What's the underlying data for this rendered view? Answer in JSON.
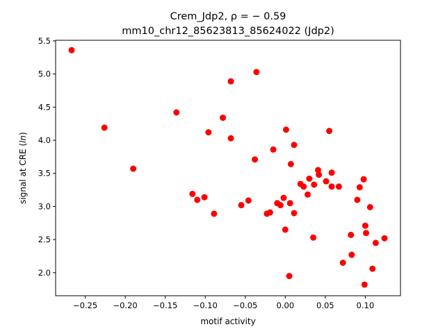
{
  "chart_data": {
    "type": "scatter",
    "title_line1": "Crem_Jdp2, ρ = − 0.59",
    "title_line2": "mm10_chr12_85623813_85624022 (Jdp2)",
    "xlabel": "motif activity",
    "ylabel_prefix": "signal at CRE (",
    "ylabel_italic": "ln",
    "ylabel_suffix": ")",
    "xlim": [
      -0.287,
      0.144
    ],
    "ylim": [
      1.652,
      5.51
    ],
    "xticks": [
      -0.25,
      -0.2,
      -0.15,
      -0.1,
      -0.05,
      0.0,
      0.05,
      0.1
    ],
    "xtick_labels": [
      "−0.25",
      "−0.20",
      "−0.15",
      "−0.10",
      "−0.05",
      "0.00",
      "0.05",
      "0.10"
    ],
    "yticks": [
      2.0,
      2.5,
      3.0,
      3.5,
      4.0,
      4.5,
      5.0,
      5.5
    ],
    "ytick_labels": [
      "2.0",
      "2.5",
      "3.0",
      "3.5",
      "4.0",
      "4.5",
      "5.0",
      "5.5"
    ],
    "grid": false,
    "marker_color": "#ff0000",
    "points": [
      [
        -0.267,
        5.36
      ],
      [
        -0.226,
        4.19
      ],
      [
        -0.19,
        3.57
      ],
      [
        -0.136,
        4.42
      ],
      [
        -0.116,
        3.19
      ],
      [
        -0.11,
        3.1
      ],
      [
        -0.101,
        3.14
      ],
      [
        -0.096,
        4.12
      ],
      [
        -0.089,
        2.89
      ],
      [
        -0.078,
        4.34
      ],
      [
        -0.068,
        4.89
      ],
      [
        -0.068,
        4.03
      ],
      [
        -0.055,
        3.02
      ],
      [
        -0.046,
        3.09
      ],
      [
        -0.038,
        3.71
      ],
      [
        -0.036,
        5.03
      ],
      [
        -0.023,
        2.89
      ],
      [
        -0.019,
        2.91
      ],
      [
        -0.015,
        3.86
      ],
      [
        -0.01,
        3.05
      ],
      [
        -0.006,
        3.02
      ],
      [
        -0.002,
        3.13
      ],
      [
        0.0,
        2.65
      ],
      [
        0.001,
        4.16
      ],
      [
        0.005,
        1.95
      ],
      [
        0.006,
        3.05
      ],
      [
        0.007,
        3.64
      ],
      [
        0.011,
        2.9
      ],
      [
        0.011,
        3.93
      ],
      [
        0.019,
        3.34
      ],
      [
        0.023,
        3.3
      ],
      [
        0.028,
        3.18
      ],
      [
        0.03,
        3.42
      ],
      [
        0.035,
        2.53
      ],
      [
        0.036,
        3.33
      ],
      [
        0.041,
        3.55
      ],
      [
        0.042,
        3.48
      ],
      [
        0.051,
        3.38
      ],
      [
        0.055,
        4.14
      ],
      [
        0.058,
        3.51
      ],
      [
        0.058,
        3.3
      ],
      [
        0.067,
        3.3
      ],
      [
        0.072,
        2.15
      ],
      [
        0.082,
        2.57
      ],
      [
        0.083,
        2.27
      ],
      [
        0.09,
        3.1
      ],
      [
        0.093,
        3.29
      ],
      [
        0.098,
        3.41
      ],
      [
        0.099,
        1.82
      ],
      [
        0.1,
        2.71
      ],
      [
        0.101,
        2.6
      ],
      [
        0.106,
        2.99
      ],
      [
        0.109,
        2.06
      ],
      [
        0.113,
        2.45
      ],
      [
        0.124,
        2.52
      ]
    ]
  }
}
